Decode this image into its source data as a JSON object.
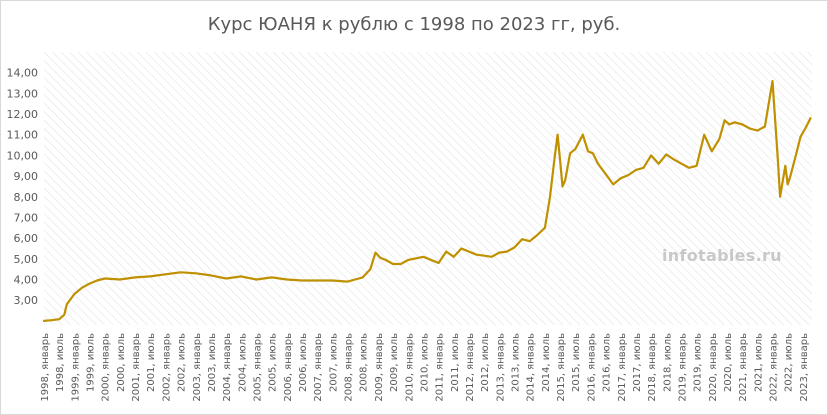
{
  "chart_data": {
    "type": "line",
    "title": "Курс ЮАНЯ к рублю с 1998 по 2023 гг, руб.",
    "xlabel": "",
    "ylabel": "",
    "series_color": "#bf9000",
    "grid": true,
    "grid_style": "diagonal hatch",
    "y_tick_labels": [
      "3,00",
      "4,00",
      "5,00",
      "6,00",
      "7,00",
      "8,00",
      "9,00",
      "10,00",
      "11,00",
      "12,00",
      "13,00",
      "14,00"
    ],
    "x_tick_labels": [
      "1998, январь",
      "1998, июль",
      "1999, январь",
      "1999, июль",
      "2000, январь",
      "2000, июль",
      "2001, январь",
      "2001, июль",
      "2002, январь",
      "2002, июль",
      "2003, январь",
      "2003, июль",
      "2004, январь",
      "2004, июль",
      "2005, январь",
      "2005, июль",
      "2006, январь",
      "2006, июль",
      "2007, январь",
      "2007, июль",
      "2008, январь",
      "2008, июль",
      "2009, январь",
      "2009, июль",
      "2010, январь",
      "2010, июль",
      "2011, январь",
      "2011, июль",
      "2012, январь",
      "2012, июль",
      "2013, январь",
      "2013, июль",
      "2014, январь",
      "2014, июль",
      "2015, январь",
      "2015, июль",
      "2016, январь",
      "2016, июль",
      "2017, январь",
      "2017, июль",
      "2018, январь",
      "2018, июль",
      "2019, январь",
      "2019, июль",
      "2020, январь",
      "2020, июль",
      "2021, январь",
      "2021, июль",
      "2022, январь",
      "2022, июль",
      "2023, январь"
    ],
    "x": [
      1998.0,
      1998.25,
      1998.5,
      1998.67,
      1998.75,
      1999.0,
      1999.25,
      1999.5,
      1999.75,
      2000.0,
      2000.5,
      2001.0,
      2001.5,
      2002.0,
      2002.5,
      2003.0,
      2003.5,
      2004.0,
      2004.5,
      2005.0,
      2005.5,
      2006.0,
      2006.5,
      2007.0,
      2007.5,
      2008.0,
      2008.25,
      2008.5,
      2008.75,
      2008.92,
      2009.08,
      2009.25,
      2009.5,
      2009.75,
      2010.0,
      2010.5,
      2011.0,
      2011.25,
      2011.5,
      2011.75,
      2012.0,
      2012.25,
      2012.5,
      2012.75,
      2013.0,
      2013.25,
      2013.5,
      2013.75,
      2014.0,
      2014.25,
      2014.5,
      2014.67,
      2014.83,
      2014.92,
      2015.0,
      2015.08,
      2015.17,
      2015.33,
      2015.5,
      2015.75,
      2015.92,
      2016.08,
      2016.25,
      2016.5,
      2016.75,
      2017.0,
      2017.25,
      2017.5,
      2017.75,
      2018.0,
      2018.25,
      2018.5,
      2018.75,
      2019.0,
      2019.25,
      2019.5,
      2019.75,
      2020.0,
      2020.25,
      2020.42,
      2020.58,
      2020.75,
      2021.0,
      2021.25,
      2021.5,
      2021.75,
      2022.0,
      2022.17,
      2022.25,
      2022.42,
      2022.5,
      2022.58,
      2022.75,
      2022.92,
      2023.08,
      2023.25
    ],
    "y": [
      2.0,
      2.03,
      2.08,
      2.3,
      2.8,
      3.3,
      3.6,
      3.8,
      3.95,
      4.05,
      4.0,
      4.1,
      4.15,
      4.25,
      4.35,
      4.3,
      4.2,
      4.05,
      4.15,
      4.0,
      4.1,
      4.0,
      3.95,
      3.95,
      3.95,
      3.9,
      4.0,
      4.1,
      4.5,
      5.3,
      5.05,
      4.95,
      4.75,
      4.75,
      4.95,
      5.1,
      4.8,
      5.35,
      5.1,
      5.5,
      5.35,
      5.2,
      5.15,
      5.1,
      5.3,
      5.35,
      5.55,
      5.95,
      5.85,
      6.15,
      6.5,
      8.0,
      10.0,
      11.0,
      9.8,
      8.5,
      8.8,
      10.1,
      10.3,
      11.0,
      10.2,
      10.1,
      9.6,
      9.1,
      8.6,
      8.9,
      9.05,
      9.3,
      9.4,
      10.0,
      9.6,
      10.05,
      9.8,
      9.6,
      9.4,
      9.5,
      11.0,
      10.2,
      10.8,
      11.7,
      11.5,
      11.6,
      11.5,
      11.3,
      11.2,
      11.4,
      13.6,
      9.9,
      8.0,
      9.5,
      8.6,
      8.95,
      9.9,
      10.9,
      11.3,
      11.8
    ],
    "xlim": [
      1998.0,
      2023.3
    ],
    "ylim": [
      1.8,
      15.0
    ]
  },
  "watermark": "infotables.ru"
}
